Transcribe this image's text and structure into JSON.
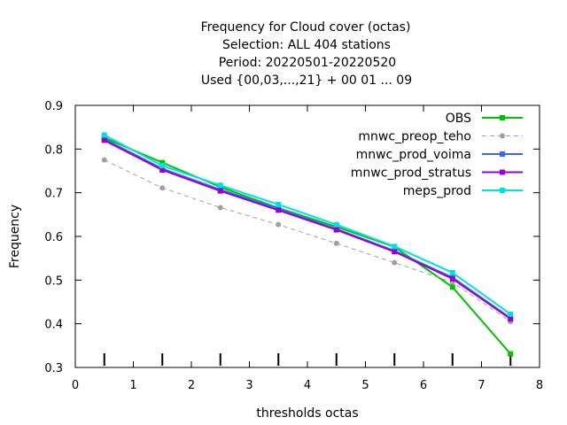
{
  "chart_data": {
    "type": "line",
    "title_lines": [
      "Frequency  for Cloud cover (octas)",
      "Selection: ALL    404 stations",
      "Period: 20220501-20220520",
      "Used {00,03,...,21} + 00 01 ... 09"
    ],
    "xlabel": "thresholds octas",
    "ylabel": "Frequency",
    "xlim": [
      0,
      8
    ],
    "ylim": [
      0.3,
      0.9
    ],
    "xticks": [
      0,
      1,
      2,
      3,
      4,
      5,
      6,
      7,
      8
    ],
    "yticks": [
      0.3,
      0.4,
      0.5,
      0.6,
      0.7,
      0.8,
      0.9
    ],
    "legend_position": "top-right",
    "grid": false,
    "x": [
      0.5,
      1.5,
      2.5,
      3.5,
      4.5,
      5.5,
      6.5,
      7.5
    ],
    "series": [
      {
        "name": "OBS",
        "color": "#00c000",
        "dash": "solid",
        "marker": "square",
        "values": [
          0.826,
          0.769,
          0.713,
          0.665,
          0.622,
          0.576,
          0.484,
          0.331
        ]
      },
      {
        "name": "mnwc_preop_teho",
        "color": "#a0a0a0",
        "dash": "dashed",
        "marker": "circle",
        "values": [
          0.775,
          0.711,
          0.666,
          0.627,
          0.584,
          0.54,
          0.495,
          0.405
        ]
      },
      {
        "name": "mnwc_prod_voima",
        "color": "#3366ff",
        "dash": "solid",
        "marker": "square",
        "values": [
          0.823,
          0.755,
          0.707,
          0.663,
          0.617,
          0.567,
          0.506,
          0.413
        ]
      },
      {
        "name": "mnwc_prod_stratus",
        "color": "#9900cc",
        "dash": "solid",
        "marker": "square",
        "values": [
          0.82,
          0.752,
          0.704,
          0.66,
          0.615,
          0.565,
          0.503,
          0.411
        ]
      },
      {
        "name": "meps_prod",
        "color": "#00e0e0",
        "dash": "solid",
        "marker": "square",
        "values": [
          0.832,
          0.762,
          0.717,
          0.673,
          0.627,
          0.577,
          0.517,
          0.422
        ]
      }
    ]
  }
}
